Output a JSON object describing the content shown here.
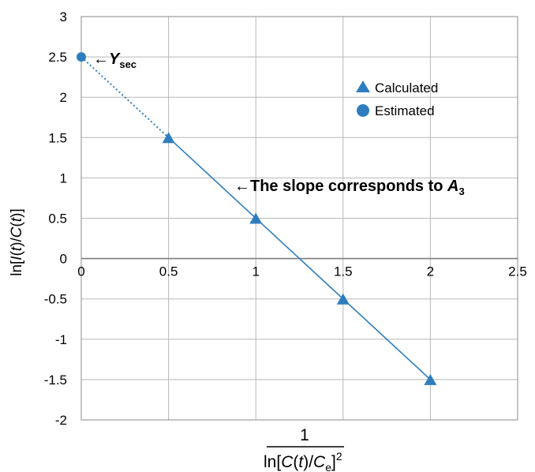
{
  "chart_data": {
    "type": "scatter",
    "xlim": [
      0,
      2.5
    ],
    "ylim": [
      -2,
      3
    ],
    "x_ticks": [
      "0",
      "0.5",
      "1",
      "1.5",
      "2",
      "2.5"
    ],
    "y_ticks": [
      "3",
      "2.5",
      "2",
      "1.5",
      "1",
      "0.5",
      "0",
      "-0.5",
      "-1",
      "-1.5",
      "-2"
    ],
    "grid": true,
    "legend_position": "top-right",
    "colors": {
      "series": "#2e7ebf",
      "grid": "#b8b8b8",
      "axis": "#7f7f7f"
    },
    "series": [
      {
        "name": "Calculated",
        "marker": "triangle",
        "x": [
          0.5,
          1,
          1.5,
          2
        ],
        "y": [
          1.5,
          0.5,
          -0.5,
          -1.5
        ]
      },
      {
        "name": "Estimated",
        "marker": "circle",
        "x": [
          0
        ],
        "y": [
          2.5
        ]
      }
    ],
    "fit_line": {
      "x": [
        0.5,
        2
      ],
      "y": [
        1.5,
        -1.5
      ]
    },
    "extrapolation": {
      "x": [
        0,
        0.5
      ],
      "y": [
        2.5,
        1.5
      ],
      "style": "dotted"
    },
    "annotations": {
      "ysec": {
        "arrow": "←",
        "symbol": "Y",
        "subscript": "sec",
        "x": 0,
        "y": 2.5
      },
      "slope": {
        "text": "←The slope corresponds to ",
        "symbol": "A",
        "subscript": "3",
        "x": 0.9,
        "y": 0.97
      }
    },
    "ylabel": {
      "prefix": "ln[",
      "v1": "I",
      "mid": "(",
      "v2": "t",
      "mid2": ")/",
      "v3": "C",
      "mid3": "(",
      "v4": "t",
      "suffix": ")]"
    },
    "xlabel": {
      "numerator": "1",
      "prefix": "ln[",
      "v1": "C",
      "mid": "(",
      "v2": "t",
      "mid2": ")/",
      "v3": "C",
      "sub": "e",
      "suffix": "]",
      "sup": "2"
    }
  }
}
